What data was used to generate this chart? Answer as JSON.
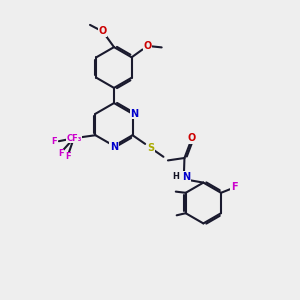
{
  "bg_color": "#eeeeee",
  "bond_color": "#1a1a2e",
  "bond_lw": 1.5,
  "dbl_sep": 0.055,
  "dbl_shorten": 0.12,
  "colors": {
    "N": "#0000cc",
    "O": "#cc0000",
    "S": "#aaaa00",
    "F": "#cc00cc",
    "C": "#111122"
  },
  "fs": 7.0,
  "fs_small": 6.0,
  "ring_r": 0.68
}
